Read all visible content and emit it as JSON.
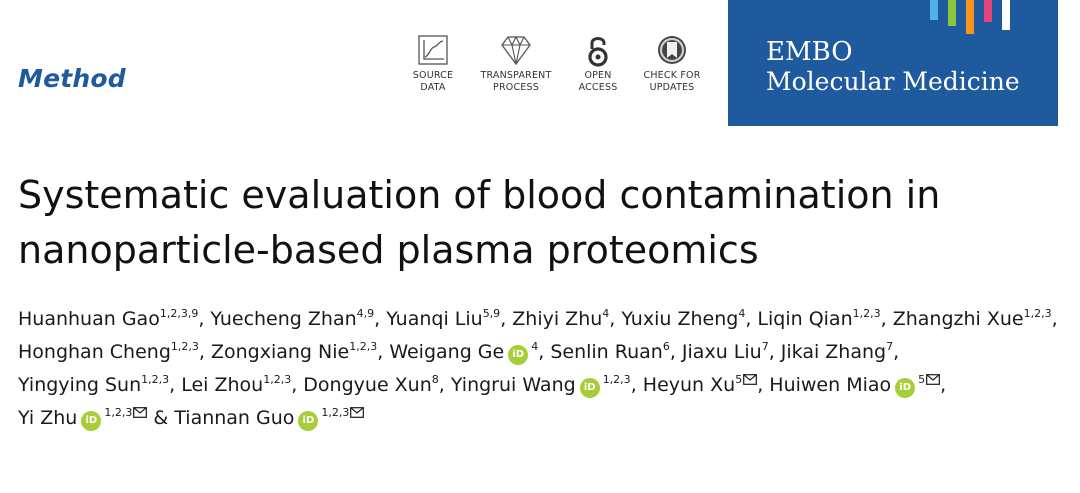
{
  "article_type": "Method",
  "badges": [
    {
      "icon": "source-data-icon",
      "line1": "SOURCE",
      "line2": "DATA"
    },
    {
      "icon": "transparent-process-icon",
      "line1": "TRANSPARENT",
      "line2": "PROCESS"
    },
    {
      "icon": "open-access-icon",
      "line1": "OPEN",
      "line2": "ACCESS"
    },
    {
      "icon": "check-updates-icon",
      "line1": "CHECK FOR",
      "line2": "UPDATES"
    }
  ],
  "journal": {
    "line1": "EMBO",
    "line2": "Molecular Medicine",
    "background": "#1f5a9e",
    "stripe_colors": [
      "#4fb3e8",
      "#8dc63f",
      "#f7941d",
      "#e2457a",
      "#ffffff"
    ]
  },
  "title": {
    "line1": "Systematic evaluation of blood contamination in",
    "line2": "nanoparticle-based plasma proteomics"
  },
  "authors": [
    {
      "name": "Huanhuan Gao",
      "aff": "1,2,3,9"
    },
    {
      "name": "Yuecheng Zhan",
      "aff": "4,9"
    },
    {
      "name": "Yuanqi Liu",
      "aff": "5,9"
    },
    {
      "name": "Zhiyi Zhu",
      "aff": "4"
    },
    {
      "name": "Yuxiu Zheng",
      "aff": "4"
    },
    {
      "name": "Liqin Qian",
      "aff": "1,2,3"
    },
    {
      "name": "Zhangzhi Xue",
      "aff": "1,2,3"
    },
    {
      "name": "Honghan Cheng",
      "aff": "1,2,3"
    },
    {
      "name": "Zongxiang Nie",
      "aff": "1,2,3"
    },
    {
      "name": "Weigang Ge",
      "aff": "4",
      "orcid": true
    },
    {
      "name": "Senlin Ruan",
      "aff": "6"
    },
    {
      "name": "Jiaxu Liu",
      "aff": "7"
    },
    {
      "name": "Jikai Zhang",
      "aff": "7"
    },
    {
      "name": "Yingying Sun",
      "aff": "1,2,3"
    },
    {
      "name": "Lei Zhou",
      "aff": "1,2,3"
    },
    {
      "name": "Dongyue Xun",
      "aff": "8"
    },
    {
      "name": "Yingrui Wang",
      "aff": "1,2,3",
      "orcid": true
    },
    {
      "name": "Heyun Xu",
      "aff": "5",
      "corresponding": true
    },
    {
      "name": "Huiwen Miao",
      "aff": "5",
      "orcid": true,
      "corresponding": true
    },
    {
      "name": "Yi Zhu",
      "aff": "1,2,3",
      "orcid": true,
      "corresponding": true
    },
    {
      "name": "Tiannan Guo",
      "aff": "1,2,3",
      "orcid": true,
      "corresponding": true
    }
  ],
  "orcid_label": "iD",
  "separators": {
    "comma": ", ",
    "last": " & "
  }
}
